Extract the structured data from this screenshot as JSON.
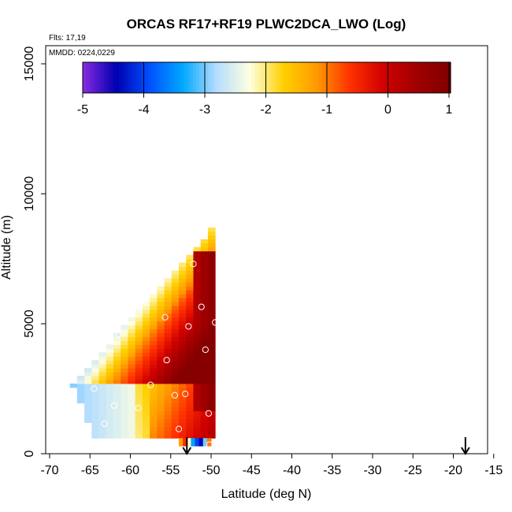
{
  "chart_data": {
    "type": "heatmap",
    "title": "ORCAS RF17+RF19 PLWC2DCA_LWO (Log)",
    "flights_label": "Flts: 17,19",
    "dates_label": "MMDD: 0224,0229",
    "xlabel": "Latitude (deg N)",
    "ylabel": "Altitude (m)",
    "xlim": [
      -70,
      -15
    ],
    "ylim": [
      0,
      15500
    ],
    "x_ticks": [
      "-70",
      "-65",
      "-60",
      "-55",
      "-50",
      "-45",
      "-40",
      "-35",
      "-30",
      "-25",
      "-20",
      "-15"
    ],
    "y_ticks": [
      "0",
      "5000",
      "10000",
      "15000"
    ],
    "colorbar": {
      "range": [
        -5,
        1
      ],
      "tick_labels": [
        "-5",
        "-4",
        "-3",
        "-2",
        "-1",
        "0",
        "1"
      ],
      "colors": [
        "#8a2be2",
        "#0000b0",
        "#0050ff",
        "#00a8ff",
        "#b5ddff",
        "#ffffe0",
        "#ffd000",
        "#ff9a00",
        "#ff3000",
        "#d00000",
        "#a00000",
        "#800000"
      ]
    },
    "grid": false,
    "legend": "none",
    "profile_markers": [
      {
        "lat": -64.5,
        "alt": 2500
      },
      {
        "lat": -63.2,
        "alt": 1150
      },
      {
        "lat": -62.0,
        "alt": 1850
      },
      {
        "lat": -61.5,
        "alt": 4600
      },
      {
        "lat": -59.0,
        "alt": 1750
      },
      {
        "lat": -57.5,
        "alt": 2650
      },
      {
        "lat": -55.5,
        "alt": 3600
      },
      {
        "lat": -55.7,
        "alt": 5250
      },
      {
        "lat": -54.5,
        "alt": 2250
      },
      {
        "lat": -53.2,
        "alt": 2300
      },
      {
        "lat": -52.8,
        "alt": 4900
      },
      {
        "lat": -52.2,
        "alt": 7300
      },
      {
        "lat": -51.2,
        "alt": 5650
      },
      {
        "lat": -50.7,
        "alt": 4000
      },
      {
        "lat": -50.3,
        "alt": 1550
      },
      {
        "lat": -49.5,
        "alt": 5050
      },
      {
        "lat": -54.0,
        "alt": 950
      },
      {
        "lat": -50.2,
        "alt": 350
      }
    ],
    "arrows": [
      {
        "lat": -53.0
      },
      {
        "lat": -18.5
      }
    ]
  }
}
